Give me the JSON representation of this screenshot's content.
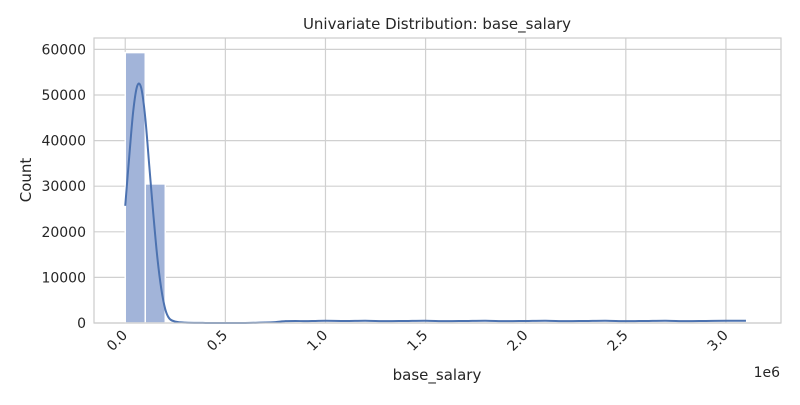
{
  "chart_data": {
    "type": "bar",
    "title": "Univariate Distribution: base_salary",
    "xlabel": "base_salary",
    "ylabel": "Count",
    "x_offset_label": "1e6",
    "xlim": [
      -0.156,
      3.275
    ],
    "ylim": [
      0,
      62500
    ],
    "x_ticks": [
      0.0,
      0.5,
      1.0,
      1.5,
      2.0,
      2.5,
      3.0
    ],
    "x_tick_labels": [
      "0.0",
      "0.5",
      "1.0",
      "1.5",
      "2.0",
      "2.5",
      "3.0"
    ],
    "y_ticks": [
      0,
      10000,
      20000,
      30000,
      40000,
      50000,
      60000
    ],
    "y_tick_labels": [
      "0",
      "10000",
      "20000",
      "30000",
      "40000",
      "50000",
      "60000"
    ],
    "grid": true,
    "bin_width": 0.1,
    "bins": [
      {
        "x0": 0.0,
        "x1": 0.1,
        "count": 59300
      },
      {
        "x0": 0.1,
        "x1": 0.2,
        "count": 30500
      },
      {
        "x0": 0.2,
        "x1": 0.3,
        "count": 40
      }
    ],
    "kde": {
      "x": [
        0.0,
        0.02,
        0.04,
        0.06,
        0.08,
        0.1,
        0.12,
        0.14,
        0.16,
        0.18,
        0.2,
        0.22,
        0.25,
        0.3,
        0.4,
        0.5,
        0.6,
        0.7,
        0.75,
        0.8,
        0.85,
        0.9,
        0.95,
        1.0,
        1.1,
        1.2,
        1.3,
        1.4,
        1.5,
        1.6,
        1.7,
        1.8,
        1.9,
        2.0,
        2.1,
        2.2,
        2.3,
        2.4,
        2.5,
        2.6,
        2.7,
        2.8,
        2.9,
        3.0,
        3.1
      ],
      "y": [
        25700,
        36500,
        46500,
        52000,
        51500,
        45000,
        34500,
        24000,
        14500,
        7500,
        3000,
        1000,
        300,
        80,
        10,
        5,
        10,
        100,
        200,
        400,
        450,
        400,
        450,
        500,
        450,
        500,
        400,
        450,
        500,
        400,
        450,
        500,
        400,
        450,
        500,
        400,
        450,
        500,
        400,
        450,
        500,
        400,
        450,
        500,
        500
      ]
    },
    "colors": {
      "bar_fill": "#a2b4d9",
      "line": "#4c72b0",
      "grid": "#d0d0d0",
      "frame": "#cccccc"
    }
  }
}
